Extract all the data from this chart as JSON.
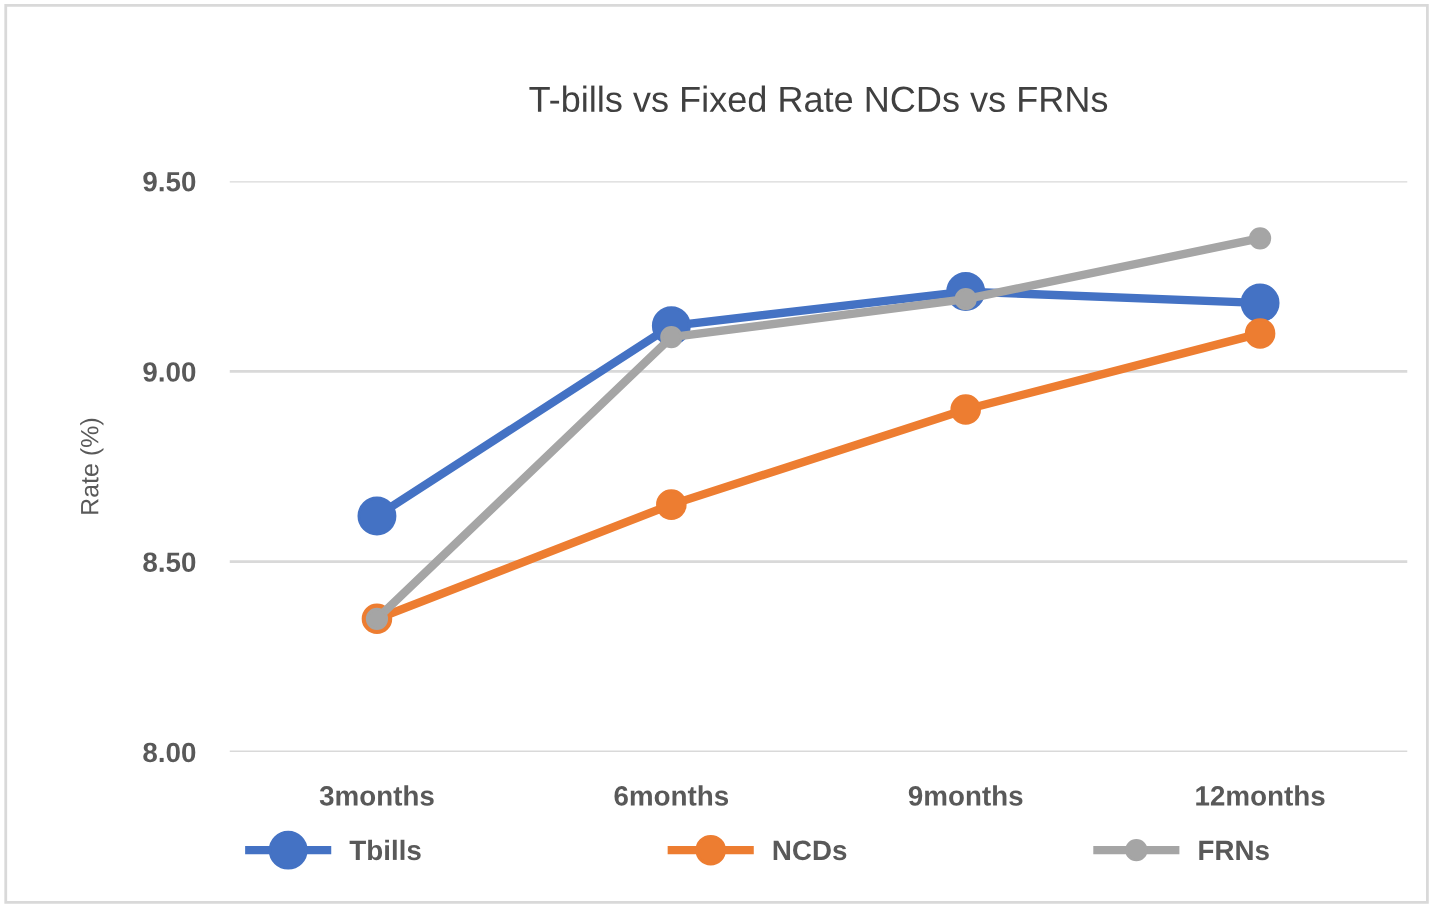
{
  "chart_data": {
    "type": "line",
    "title": "T-bills vs Fixed Rate NCDs vs FRNs",
    "ylabel": "Rate (%)",
    "categories": [
      "3months",
      "6months",
      "9months",
      "12months"
    ],
    "series": [
      {
        "name": "Tbills",
        "color": "#4472c4",
        "values": [
          8.62,
          9.12,
          9.21,
          9.18
        ]
      },
      {
        "name": "NCDs",
        "color": "#ed7d31",
        "values": [
          8.35,
          8.65,
          8.9,
          9.1
        ]
      },
      {
        "name": "FRNs",
        "color": "#a5a5a5",
        "values": [
          8.35,
          9.09,
          9.19,
          9.35
        ]
      }
    ],
    "ylim": [
      8.0,
      9.5
    ],
    "yticks": [
      {
        "value": 8.0,
        "label": "8.00"
      },
      {
        "value": 8.5,
        "label": "8.50"
      },
      {
        "value": 9.0,
        "label": "9.00"
      },
      {
        "value": 9.5,
        "label": "9.50"
      }
    ],
    "grid": "y",
    "legend": "bottom",
    "marker": "circle",
    "line_style": "solid"
  }
}
